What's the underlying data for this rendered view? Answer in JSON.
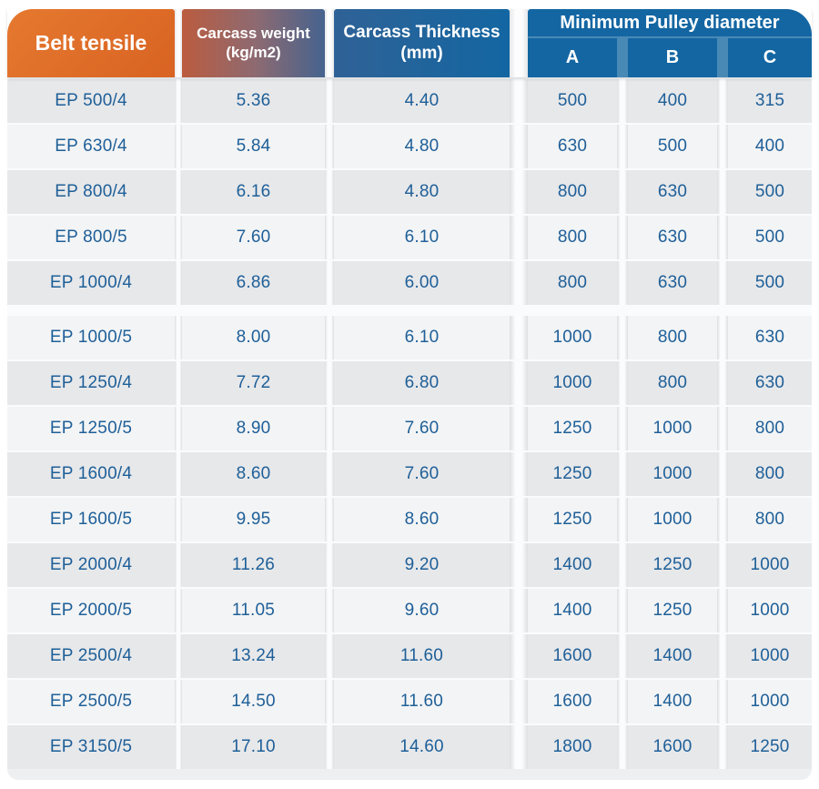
{
  "colors": {
    "header_orange_light": "#e5792f",
    "header_orange_dark": "#d96322",
    "gradient_left": "#bb5c3f",
    "gradient_mid": "#8d6a72",
    "gradient_right": "#45638e",
    "header_blue_left": "#2f6296",
    "header_blue": "#1366a2",
    "header_divider_blue": "#4989b6",
    "row_dark": "#e7e8ea",
    "row_light": "#f3f4f5",
    "cell_text": "#1e5f98",
    "bottom_strip": "#edeff1"
  },
  "table": {
    "headers": {
      "col1": "Belt tensile",
      "col2_line1": "Carcass weight",
      "col2_line2": "(kg/m2)",
      "col3_line1": "Carcass Thickness",
      "col3_line2": "(mm)",
      "pulley_group": "Minimum Pulley diameter",
      "pulley_sub": [
        "A",
        "B",
        "C"
      ]
    },
    "group_split_index": 5,
    "rows": [
      [
        "EP 500/4",
        "5.36",
        "4.40",
        "500",
        "400",
        "315"
      ],
      [
        "EP 630/4",
        "5.84",
        "4.80",
        "630",
        "500",
        "400"
      ],
      [
        "EP 800/4",
        "6.16",
        "4.80",
        "800",
        "630",
        "500"
      ],
      [
        "EP 800/5",
        "7.60",
        "6.10",
        "800",
        "630",
        "500"
      ],
      [
        "EP 1000/4",
        "6.86",
        "6.00",
        "800",
        "630",
        "500"
      ],
      [
        "EP 1000/5",
        "8.00",
        "6.10",
        "1000",
        "800",
        "630"
      ],
      [
        "EP 1250/4",
        "7.72",
        "6.80",
        "1000",
        "800",
        "630"
      ],
      [
        "EP 1250/5",
        "8.90",
        "7.60",
        "1250",
        "1000",
        "800"
      ],
      [
        "EP 1600/4",
        "8.60",
        "7.60",
        "1250",
        "1000",
        "800"
      ],
      [
        "EP 1600/5",
        "9.95",
        "8.60",
        "1250",
        "1000",
        "800"
      ],
      [
        "EP 2000/4",
        "11.26",
        "9.20",
        "1400",
        "1250",
        "1000"
      ],
      [
        "EP 2000/5",
        "11.05",
        "9.60",
        "1400",
        "1250",
        "1000"
      ],
      [
        "EP 2500/4",
        "13.24",
        "11.60",
        "1600",
        "1400",
        "1000"
      ],
      [
        "EP 2500/5",
        "14.50",
        "11.60",
        "1600",
        "1400",
        "1000"
      ],
      [
        "EP 3150/5",
        "17.10",
        "14.60",
        "1800",
        "1600",
        "1250"
      ]
    ]
  },
  "chart_data": {
    "type": "table",
    "title": "Belt tensile specifications",
    "columns": [
      "Belt tensile",
      "Carcass weight (kg/m2)",
      "Carcass Thickness (mm)",
      "Minimum Pulley diameter A",
      "Minimum Pulley diameter B",
      "Minimum Pulley diameter C"
    ],
    "rows": [
      [
        "EP 500/4",
        5.36,
        4.4,
        500,
        400,
        315
      ],
      [
        "EP 630/4",
        5.84,
        4.8,
        630,
        500,
        400
      ],
      [
        "EP 800/4",
        6.16,
        4.8,
        800,
        630,
        500
      ],
      [
        "EP 800/5",
        7.6,
        6.1,
        800,
        630,
        500
      ],
      [
        "EP 1000/4",
        6.86,
        6.0,
        800,
        630,
        500
      ],
      [
        "EP 1000/5",
        8.0,
        6.1,
        1000,
        800,
        630
      ],
      [
        "EP 1250/4",
        7.72,
        6.8,
        1000,
        800,
        630
      ],
      [
        "EP 1250/5",
        8.9,
        7.6,
        1250,
        1000,
        800
      ],
      [
        "EP 1600/4",
        8.6,
        7.6,
        1250,
        1000,
        800
      ],
      [
        "EP 1600/5",
        9.95,
        8.6,
        1250,
        1000,
        800
      ],
      [
        "EP 2000/4",
        11.26,
        9.2,
        1400,
        1250,
        1000
      ],
      [
        "EP 2000/5",
        11.05,
        9.6,
        1400,
        1250,
        1000
      ],
      [
        "EP 2500/4",
        13.24,
        11.6,
        1600,
        1400,
        1000
      ],
      [
        "EP 2500/5",
        14.5,
        11.6,
        1600,
        1400,
        1000
      ],
      [
        "EP 3150/5",
        17.1,
        14.6,
        1800,
        1600,
        1250
      ]
    ],
    "layout_hints": {
      "header_style": "orange-to-blue gradient band",
      "row_striping": true,
      "section_break_before_row": "EP 1000/5"
    }
  }
}
